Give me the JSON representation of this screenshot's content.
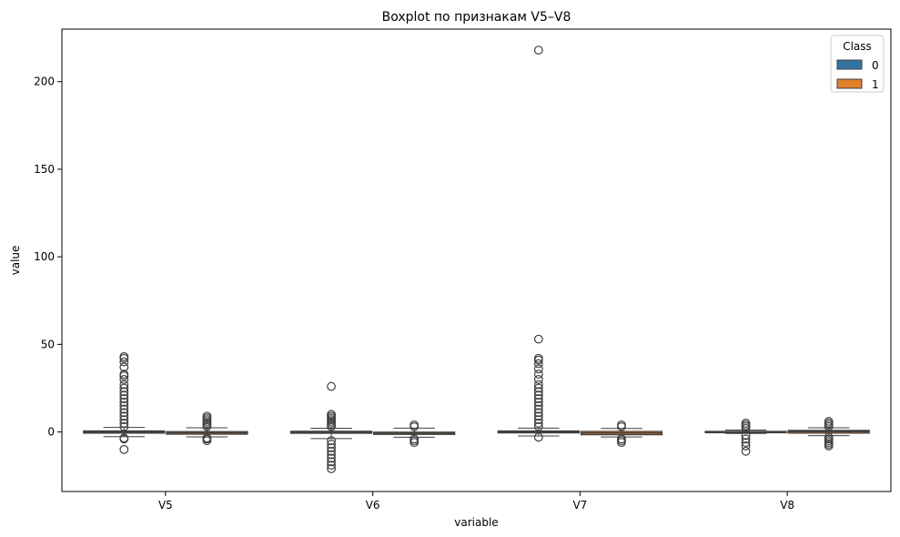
{
  "chart_data": {
    "type": "boxplot",
    "title": "Boxplot по признакам V5–V8",
    "xlabel": "variable",
    "ylabel": "value",
    "categories": [
      "V5",
      "V6",
      "V7",
      "V8"
    ],
    "ylim": [
      -34,
      230
    ],
    "yticks": [
      0,
      50,
      100,
      150,
      200
    ],
    "grid": false,
    "legend": {
      "title": "Class",
      "placement": "top-right",
      "entries": [
        "0",
        "1"
      ]
    },
    "series": [
      {
        "name": "0",
        "color": "#1f77b4",
        "boxes": [
          {
            "category": "V5",
            "whisker_low": -2.7,
            "q1": -0.7,
            "median": -0.05,
            "q3": 0.6,
            "whisker_high": 2.6,
            "outliers": [
              -10,
              -4,
              -3.5,
              3,
              5,
              7,
              9,
              11,
              13,
              15,
              17,
              19,
              21,
              23,
              25,
              27,
              30,
              32,
              33,
              37,
              40,
              42,
              43
            ]
          },
          {
            "category": "V6",
            "whisker_low": -3.8,
            "q1": -0.77,
            "median": -0.27,
            "q3": 0.4,
            "whisker_high": 2.1,
            "outliers": [
              -21,
              -19,
              -17,
              -15,
              -13,
              -11,
              -9,
              -7,
              -5,
              3,
              4,
              5,
              6,
              7,
              8,
              9,
              10,
              26
            ]
          },
          {
            "category": "V7",
            "whisker_low": -2.3,
            "q1": -0.55,
            "median": 0.04,
            "q3": 0.57,
            "whisker_high": 2.2,
            "outliers": [
              -3,
              3,
              5,
              7,
              9,
              11,
              13,
              15,
              17,
              19,
              21,
              23,
              25,
              27,
              30,
              33,
              36,
              39,
              41,
              42,
              53,
              218
            ]
          },
          {
            "category": "V8",
            "whisker_low": -0.85,
            "q1": -0.2,
            "median": 0.02,
            "q3": 0.32,
            "whisker_high": 1.1,
            "outliers": [
              -11,
              -8,
              -6,
              -4,
              -2,
              2,
              3,
              4,
              5
            ]
          }
        ]
      },
      {
        "name": "1",
        "color": "#ff7f0e",
        "boxes": [
          {
            "category": "V5",
            "whisker_low": -2.8,
            "q1": -1.3,
            "median": -0.5,
            "q3": 0.2,
            "whisker_high": 2.4,
            "outliers": [
              -5,
              -4,
              -3.5,
              3,
              4,
              5,
              6,
              7,
              8,
              9
            ]
          },
          {
            "category": "V6",
            "whisker_low": -3,
            "q1": -1.4,
            "median": -0.8,
            "q3": -0.1,
            "whisker_high": 2.2,
            "outliers": [
              -6,
              -5,
              -4,
              3,
              4
            ]
          },
          {
            "category": "V7",
            "whisker_low": -2.9,
            "q1": -1.6,
            "median": -0.6,
            "q3": 0.3,
            "whisker_high": 2.0,
            "outliers": [
              -6,
              -5,
              -4,
              3,
              4
            ]
          },
          {
            "category": "V8",
            "whisker_low": -2.1,
            "q1": -0.7,
            "median": 0.2,
            "q3": 0.9,
            "whisker_high": 2.4,
            "outliers": [
              -8,
              -7,
              -6,
              -5,
              -4,
              -3,
              3,
              4,
              5,
              6
            ]
          }
        ]
      }
    ]
  }
}
